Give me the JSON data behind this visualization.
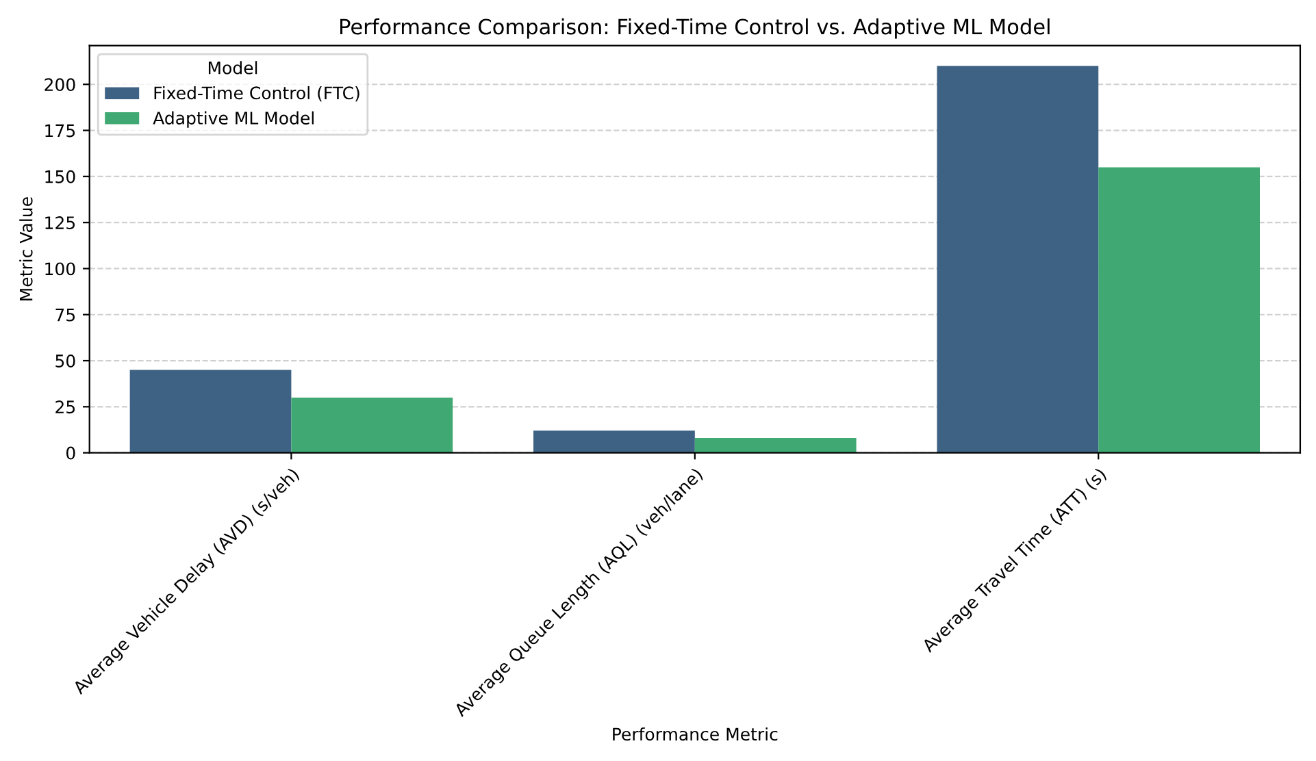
{
  "chart_data": {
    "type": "bar",
    "title": "Performance Comparison: Fixed-Time Control vs. Adaptive ML Model",
    "xlabel": "Performance Metric",
    "ylabel": "Metric Value",
    "legend_title": "Model",
    "categories": [
      "Average Vehicle Delay (AVD) (s/veh)",
      "Average Queue Length (AQL) (veh/lane)",
      "Average Travel Time (ATT) (s)"
    ],
    "series": [
      {
        "name": "Fixed-Time Control (FTC)",
        "color": "#3e6283",
        "values": [
          45,
          12,
          210
        ]
      },
      {
        "name": "Adaptive ML Model",
        "color": "#40a872",
        "values": [
          30,
          8,
          155
        ]
      }
    ],
    "ylim": [
      0,
      221
    ],
    "yticks": [
      0,
      25,
      50,
      75,
      100,
      125,
      150,
      175,
      200
    ],
    "grid": "y",
    "legend": "top left"
  }
}
